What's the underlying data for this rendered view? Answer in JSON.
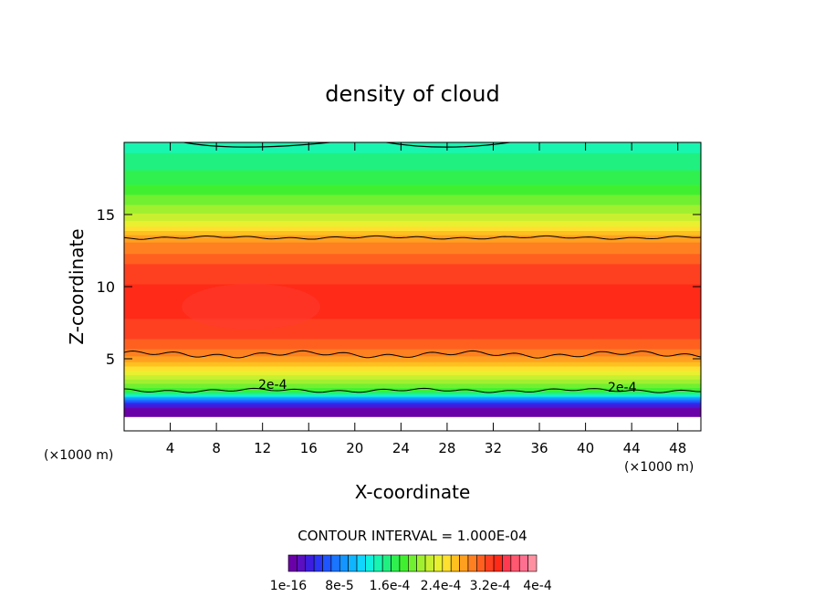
{
  "chart_data": {
    "type": "heatmap",
    "title": "density of cloud",
    "xlabel": "X-coordinate",
    "ylabel": "Z-coordinate",
    "x_unit": "(×1000 m)",
    "xlim": [
      0,
      50
    ],
    "ylim": [
      0,
      20
    ],
    "x_ticks": [
      "4",
      "8",
      "12",
      "16",
      "20",
      "24",
      "28",
      "32",
      "36",
      "40",
      "44",
      "48"
    ],
    "y_ticks": [
      "5",
      "10",
      "15"
    ],
    "contour_interval_text": "CONTOUR INTERVAL = 1.000E-04",
    "contour_labels": [
      "2e-4",
      "2e-4"
    ],
    "colorbar": {
      "labels": [
        "1e-16",
        "8e-5",
        "1.6e-4",
        "2.4e-4",
        "3.2e-4",
        "4e-4"
      ],
      "colors": [
        "#6a00a8",
        "#5a0fc0",
        "#3d1ee0",
        "#2a35f5",
        "#1f55ff",
        "#1a75ff",
        "#1495ff",
        "#10b5ff",
        "#10d5ff",
        "#10f0e0",
        "#18f5b0",
        "#20f080",
        "#30f050",
        "#40f030",
        "#70f030",
        "#a0f030",
        "#c8f030",
        "#e8f030",
        "#ffe030",
        "#ffc020",
        "#ffa020",
        "#ff8020",
        "#ff6020",
        "#ff4020",
        "#ff2a18",
        "#ff3a50",
        "#ff5870",
        "#ff7090",
        "#ff90a0"
      ]
    },
    "profile": [
      {
        "z": 0.0,
        "value": 0.0
      },
      {
        "z": 1.0,
        "value": 0.0
      },
      {
        "z": 1.5,
        "value": 1e-05
      },
      {
        "z": 2.0,
        "value": 6e-05
      },
      {
        "z": 2.8,
        "value": 0.0002
      },
      {
        "z": 3.5,
        "value": 0.00024
      },
      {
        "z": 4.5,
        "value": 0.00029
      },
      {
        "z": 5.5,
        "value": 0.00033
      },
      {
        "z": 7.0,
        "value": 0.00036
      },
      {
        "z": 9.0,
        "value": 0.00037
      },
      {
        "z": 11.0,
        "value": 0.00036
      },
      {
        "z": 12.5,
        "value": 0.00033
      },
      {
        "z": 13.5,
        "value": 0.00031
      },
      {
        "z": 14.5,
        "value": 0.00026
      },
      {
        "z": 16.0,
        "value": 0.00022
      },
      {
        "z": 17.5,
        "value": 0.00019
      },
      {
        "z": 19.0,
        "value": 0.00017
      },
      {
        "z": 20.0,
        "value": 0.00016
      }
    ]
  }
}
